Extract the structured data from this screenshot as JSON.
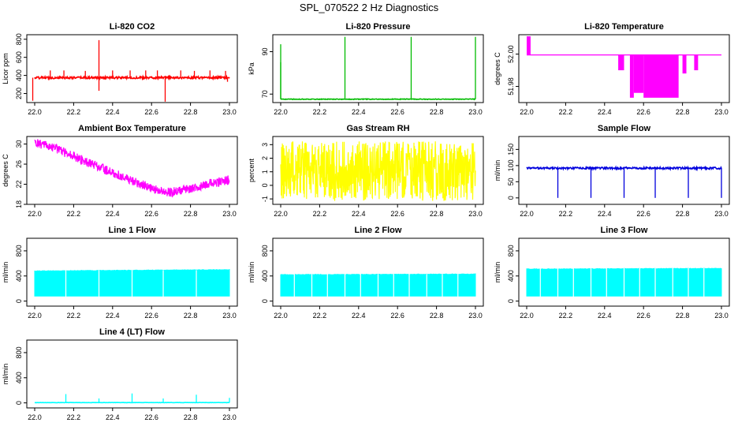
{
  "figure_title": "SPL_070522  2 Hz Diagnostics",
  "chart_data": [
    {
      "type": "line",
      "title": "Li-820 CO2",
      "ylabel": "Licor ppm",
      "xlabel": "",
      "color": "#ff0000",
      "x": [
        22.0,
        22.2,
        22.4,
        22.6,
        22.8,
        23.0
      ],
      "xticks": [
        "22.0",
        "22.2",
        "22.4",
        "22.6",
        "22.8",
        "23.0"
      ],
      "xlim": [
        21.98,
        23.02
      ],
      "ylim": [
        100,
        850
      ],
      "yticks": [
        200,
        400,
        600,
        800
      ],
      "ytick_labels": [
        "200",
        "400",
        "600",
        "800"
      ],
      "series": [
        {
          "name": "CO2",
          "kind": "baseline_spikes",
          "base": 375,
          "noise": 12,
          "spikes": [
            [
              21.99,
              120
            ],
            [
              22.08,
              455
            ],
            [
              22.15,
              455
            ],
            [
              22.26,
              450
            ],
            [
              22.33,
              790
            ],
            [
              22.33,
              230
            ],
            [
              22.4,
              455
            ],
            [
              22.49,
              455
            ],
            [
              22.57,
              455
            ],
            [
              22.63,
              455
            ],
            [
              22.67,
              110
            ],
            [
              22.75,
              455
            ],
            [
              22.82,
              450
            ],
            [
              22.9,
              455
            ],
            [
              22.98,
              450
            ],
            [
              22.99,
              330
            ]
          ]
        }
      ]
    },
    {
      "type": "line",
      "title": "Li-820 Pressure",
      "ylabel": "kPa",
      "xlabel": "",
      "color": "#00bb00",
      "x": [
        22.0,
        22.2,
        22.4,
        22.6,
        22.8,
        23.0
      ],
      "xticks": [
        "22.0",
        "22.2",
        "22.4",
        "22.6",
        "22.8",
        "23.0"
      ],
      "xlim": [
        21.98,
        23.02
      ],
      "ylim": [
        66,
        98
      ],
      "yticks": [
        70,
        90
      ],
      "ytick_labels": [
        "70",
        "90"
      ],
      "series": [
        {
          "name": "Pressure",
          "kind": "baseline_spikes",
          "base": 67.6,
          "noise": 0.15,
          "spikes": [
            [
              22.0,
              93.5
            ],
            [
              22.0,
              85
            ],
            [
              22.33,
              97
            ],
            [
              22.67,
              97
            ],
            [
              23.0,
              97
            ]
          ]
        }
      ]
    },
    {
      "type": "line",
      "title": "Li-820 Temperature",
      "ylabel": "degrees C",
      "xlabel": "",
      "color": "#ff00ff",
      "x": [
        22.0,
        22.2,
        22.4,
        22.6,
        22.8,
        23.0
      ],
      "xticks": [
        "22.0",
        "22.2",
        "22.4",
        "22.6",
        "22.8",
        "23.0"
      ],
      "xlim": [
        21.98,
        23.02
      ],
      "ylim": [
        51.97,
        52.012
      ],
      "yticks": [
        51.98,
        52.0
      ],
      "ytick_labels": [
        "51.98",
        "52.00"
      ],
      "series": [
        {
          "name": "Temperature",
          "kind": "step_blocks",
          "base": 51.9995,
          "blocks": [
            [
              22.0,
              22.02,
              52.011
            ],
            [
              22.47,
              22.5,
              51.99
            ],
            [
              22.53,
              22.55,
              51.973
            ],
            [
              22.55,
              22.6,
              51.976
            ],
            [
              22.6,
              22.78,
              51.973
            ],
            [
              22.8,
              22.82,
              51.988
            ],
            [
              22.86,
              22.88,
              51.99
            ]
          ]
        }
      ]
    },
    {
      "type": "line",
      "title": "Ambient Box Temperature",
      "ylabel": "degrees C",
      "xlabel": "",
      "color": "#ff00ff",
      "x": [
        22.0,
        22.2,
        22.4,
        22.6,
        22.8,
        23.0
      ],
      "xticks": [
        "22.0",
        "22.2",
        "22.4",
        "22.6",
        "22.8",
        "23.0"
      ],
      "xlim": [
        21.98,
        23.02
      ],
      "ylim": [
        18,
        31.5
      ],
      "yticks": [
        18,
        22,
        26,
        30
      ],
      "ytick_labels": [
        "18",
        "22",
        "26",
        "30"
      ],
      "series": [
        {
          "name": "Box temperature",
          "kind": "noise_band",
          "points": [
            [
              22.0,
              30.3
            ],
            [
              22.1,
              29.2
            ],
            [
              22.2,
              27.6
            ],
            [
              22.3,
              25.9
            ],
            [
              22.4,
              24.3
            ],
            [
              22.5,
              22.7
            ],
            [
              22.6,
              21.2
            ],
            [
              22.65,
              20.6
            ],
            [
              22.7,
              20.4
            ],
            [
              22.8,
              21.1
            ],
            [
              22.9,
              22.2
            ],
            [
              23.0,
              22.8
            ]
          ],
          "spread": 0.9
        }
      ]
    },
    {
      "type": "line",
      "title": "Gas Stream RH",
      "ylabel": "percent",
      "xlabel": "",
      "color": "#ffff00",
      "x": [
        22.0,
        22.2,
        22.4,
        22.6,
        22.8,
        23.0
      ],
      "xticks": [
        "22.0",
        "22.2",
        "22.4",
        "22.6",
        "22.8",
        "23.0"
      ],
      "xlim": [
        21.98,
        23.02
      ],
      "ylim": [
        -1.4,
        3.6
      ],
      "yticks": [
        -1,
        0,
        1,
        2,
        3
      ],
      "ytick_labels": [
        "-1",
        "0",
        "1",
        "2",
        "3"
      ],
      "series": [
        {
          "name": "RH",
          "kind": "noise_band",
          "points": [
            [
              22.0,
              1.05
            ],
            [
              23.0,
              1.05
            ]
          ],
          "spread": 2.2
        }
      ]
    },
    {
      "type": "line",
      "title": "Sample Flow",
      "ylabel": "ml/min",
      "xlabel": "",
      "color": "#0000dd",
      "x": [
        22.0,
        22.2,
        22.4,
        22.6,
        22.8,
        23.0
      ],
      "xticks": [
        "22.0",
        "22.2",
        "22.4",
        "22.6",
        "22.8",
        "23.0"
      ],
      "xlim": [
        21.98,
        23.02
      ],
      "ylim": [
        -20,
        190
      ],
      "yticks": [
        0,
        50,
        100,
        150
      ],
      "ytick_labels": [
        "0",
        "50",
        "100",
        "150"
      ],
      "series": [
        {
          "name": "Sample flow",
          "kind": "baseline_spikes",
          "base": 92,
          "noise": 3,
          "spikes": [
            [
              22.16,
              0
            ],
            [
              22.33,
              0
            ],
            [
              22.5,
              0
            ],
            [
              22.66,
              0
            ],
            [
              22.83,
              0
            ],
            [
              23.0,
              0
            ]
          ]
        }
      ]
    },
    {
      "type": "area",
      "title": "Line 1 Flow",
      "ylabel": "ml/min",
      "xlabel": "",
      "color": "#00ffff",
      "x": [
        22.0,
        22.2,
        22.4,
        22.6,
        22.8,
        23.0
      ],
      "xticks": [
        "22.0",
        "22.2",
        "22.4",
        "22.6",
        "22.8",
        "23.0"
      ],
      "xlim": [
        21.98,
        23.02
      ],
      "ylim": [
        -80,
        1000
      ],
      "yticks": [
        0,
        400,
        800
      ],
      "ytick_labels": [
        "0",
        "400",
        "800"
      ],
      "series": [
        {
          "name": "Line 1 flow",
          "kind": "flow_band",
          "low": 80,
          "high": 480,
          "high_end": 500,
          "gaps": [
            22.16,
            22.33,
            22.5,
            22.66,
            22.83
          ]
        }
      ]
    },
    {
      "type": "area",
      "title": "Line 2 Flow",
      "ylabel": "ml/min",
      "xlabel": "",
      "color": "#00ffff",
      "x": [
        22.0,
        22.2,
        22.4,
        22.6,
        22.8,
        23.0
      ],
      "xticks": [
        "22.0",
        "22.2",
        "22.4",
        "22.6",
        "22.8",
        "23.0"
      ],
      "xlim": [
        21.98,
        23.02
      ],
      "ylim": [
        -80,
        1000
      ],
      "yticks": [
        0,
        400,
        800
      ],
      "ytick_labels": [
        "0",
        "400",
        "800"
      ],
      "series": [
        {
          "name": "Line 2 flow",
          "kind": "flow_band",
          "low": 80,
          "high": 420,
          "high_end": 430,
          "gaps": [
            22.07,
            22.16,
            22.24,
            22.33,
            22.41,
            22.5,
            22.58,
            22.66,
            22.75,
            22.83,
            22.91
          ]
        }
      ]
    },
    {
      "type": "area",
      "title": "Line 3 Flow",
      "ylabel": "ml/min",
      "xlabel": "",
      "color": "#00ffff",
      "x": [
        22.0,
        22.2,
        22.4,
        22.6,
        22.8,
        23.0
      ],
      "xticks": [
        "22.0",
        "22.2",
        "22.4",
        "22.6",
        "22.8",
        "23.0"
      ],
      "xlim": [
        21.98,
        23.02
      ],
      "ylim": [
        -80,
        1000
      ],
      "yticks": [
        0,
        400,
        800
      ],
      "ytick_labels": [
        "0",
        "400",
        "800"
      ],
      "series": [
        {
          "name": "Line 3 flow",
          "kind": "flow_band",
          "low": 80,
          "high": 510,
          "high_end": 520,
          "gaps": [
            22.07,
            22.16,
            22.24,
            22.33,
            22.41,
            22.5,
            22.58,
            22.66,
            22.75,
            22.83,
            22.91
          ]
        }
      ]
    },
    {
      "type": "line",
      "title": "Line 4 (LT) Flow",
      "ylabel": "ml/min",
      "xlabel": "",
      "color": "#00ffff",
      "x": [
        22.0,
        22.2,
        22.4,
        22.6,
        22.8,
        23.0
      ],
      "xticks": [
        "22.0",
        "22.2",
        "22.4",
        "22.6",
        "22.8",
        "23.0"
      ],
      "xlim": [
        21.98,
        23.02
      ],
      "ylim": [
        -80,
        1000
      ],
      "yticks": [
        0,
        400,
        800
      ],
      "ytick_labels": [
        "0",
        "400",
        "800"
      ],
      "series": [
        {
          "name": "Line 4 flow",
          "kind": "baseline_spikes",
          "base": 5,
          "noise": 2,
          "spikes": [
            [
              22.16,
              140
            ],
            [
              22.33,
              70
            ],
            [
              22.5,
              150
            ],
            [
              22.66,
              70
            ],
            [
              22.83,
              130
            ],
            [
              23.0,
              80
            ]
          ]
        }
      ]
    }
  ]
}
